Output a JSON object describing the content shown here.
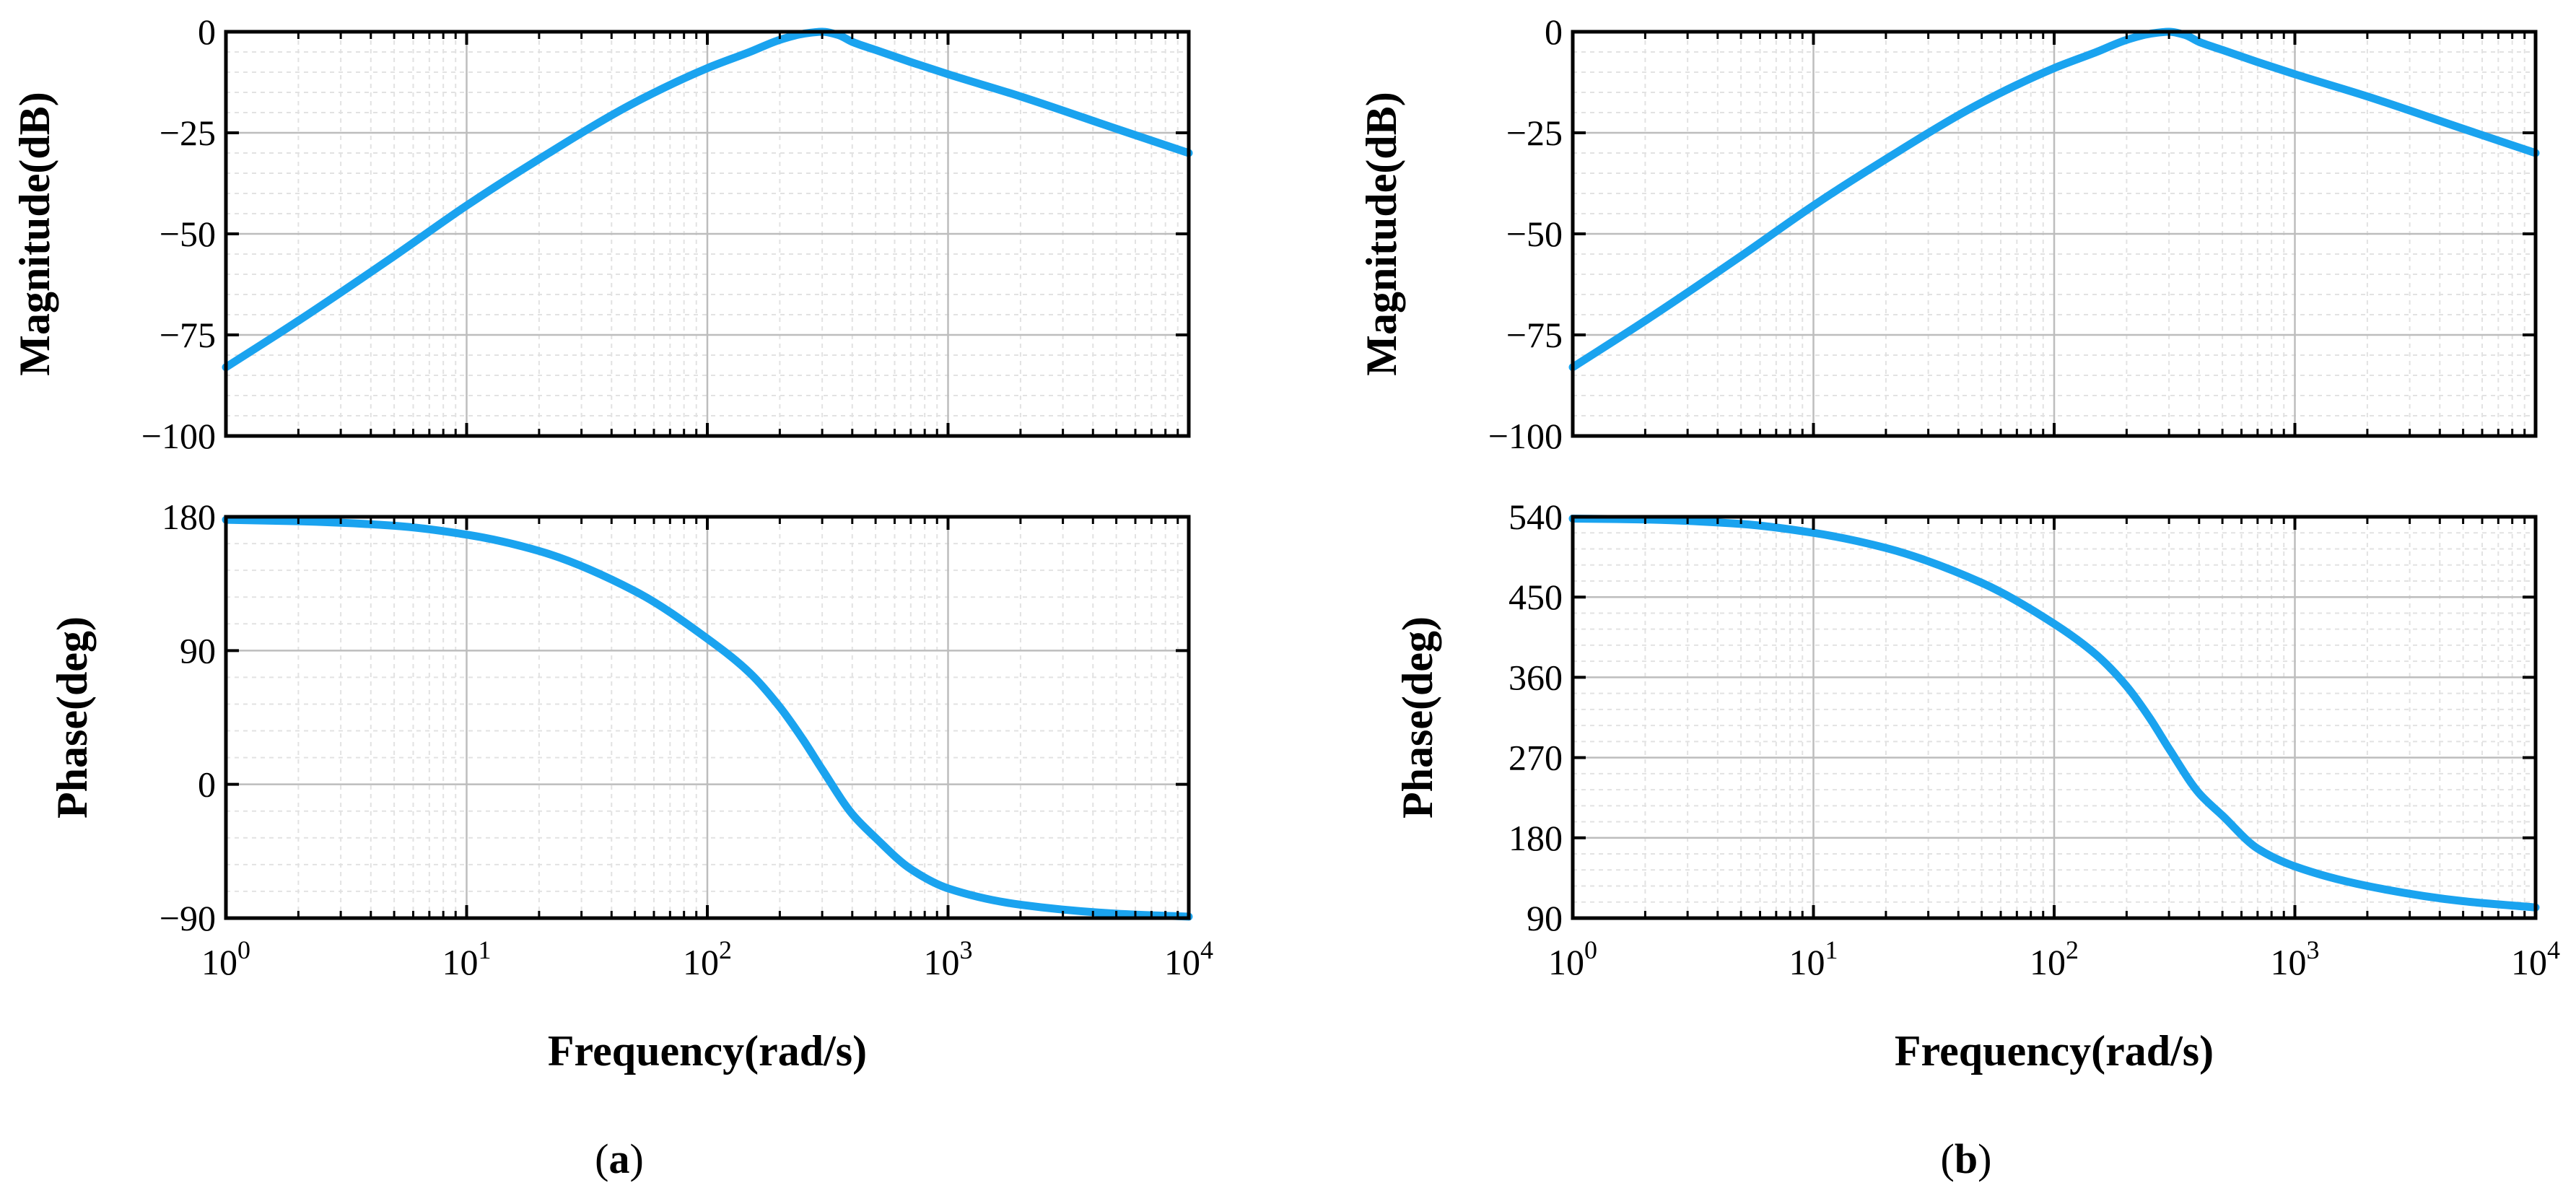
{
  "colors": {
    "line": "#1aa3ef",
    "major_grid": "#bdbdbd",
    "minor_grid": "#e2e2e2",
    "frame": "#000000"
  },
  "chart_data": [
    {
      "id": "a-magnitude",
      "type": "line",
      "panel": "a",
      "x_scale": "log",
      "xlim": [
        1,
        10000
      ],
      "ylim": [
        -100,
        0
      ],
      "yticks": [
        0,
        -25,
        -50,
        -75,
        -100
      ],
      "ytick_labels": [
        "0",
        "−25",
        "−50",
        "−75",
        "−100"
      ],
      "ylabel": "Magnitude(dB)",
      "grid": true,
      "series": [
        {
          "name": "magnitude",
          "x": [
            1,
            2,
            5,
            10,
            20,
            50,
            100,
            150,
            200,
            250,
            300,
            350,
            400,
            500,
            700,
            1000,
            2000,
            5000,
            10000
          ],
          "y": [
            -83,
            -71.5,
            -55.5,
            -43,
            -31.5,
            -17.5,
            -9,
            -5,
            -2,
            -0.5,
            0,
            -0.8,
            -2.5,
            -4.5,
            -7.5,
            -10.5,
            -16,
            -24,
            -30
          ]
        }
      ]
    },
    {
      "id": "a-phase",
      "type": "line",
      "panel": "a",
      "x_scale": "log",
      "xlim": [
        1,
        10000
      ],
      "ylim": [
        -90,
        180
      ],
      "yticks": [
        180,
        90,
        0,
        -90
      ],
      "ytick_labels": [
        "180",
        "90",
        "0",
        "−90"
      ],
      "xticks": [
        1,
        10,
        100,
        1000,
        10000
      ],
      "xtick_labels": [
        {
          "base": "10",
          "exp": "0"
        },
        {
          "base": "10",
          "exp": "1"
        },
        {
          "base": "10",
          "exp": "2"
        },
        {
          "base": "10",
          "exp": "3"
        },
        {
          "base": "10",
          "exp": "4"
        }
      ],
      "xlabel": "Frequency(rad/s)",
      "ylabel": "Phase(deg)",
      "grid": true,
      "series": [
        {
          "name": "phase",
          "x": [
            1,
            2,
            5,
            10,
            20,
            50,
            100,
            150,
            200,
            250,
            300,
            400,
            500,
            700,
            1000,
            2000,
            5000,
            10000
          ],
          "y": [
            178,
            177,
            174,
            168,
            157,
            130,
            98,
            75,
            52,
            30,
            10,
            -20,
            -36,
            -57,
            -70,
            -81,
            -87,
            -89
          ]
        }
      ]
    },
    {
      "id": "b-magnitude",
      "type": "line",
      "panel": "b",
      "x_scale": "log",
      "xlim": [
        1,
        10000
      ],
      "ylim": [
        -100,
        0
      ],
      "yticks": [
        0,
        -25,
        -50,
        -75,
        -100
      ],
      "ytick_labels": [
        "0",
        "−25",
        "−50",
        "−75",
        "−100"
      ],
      "ylabel": "Magnitude(dB)",
      "grid": true,
      "series": [
        {
          "name": "magnitude",
          "x": [
            1,
            2,
            5,
            10,
            20,
            50,
            100,
            150,
            200,
            250,
            300,
            350,
            400,
            500,
            700,
            1000,
            2000,
            5000,
            10000
          ],
          "y": [
            -83,
            -71.5,
            -55.5,
            -43,
            -31.5,
            -17.5,
            -9,
            -5,
            -2,
            -0.5,
            0,
            -0.8,
            -2.5,
            -4.5,
            -7.5,
            -10.5,
            -16,
            -24,
            -30
          ]
        }
      ]
    },
    {
      "id": "b-phase",
      "type": "line",
      "panel": "b",
      "x_scale": "log",
      "xlim": [
        1,
        10000
      ],
      "ylim": [
        90,
        540
      ],
      "yticks": [
        540,
        450,
        360,
        270,
        180,
        90
      ],
      "ytick_labels": [
        "540",
        "450",
        "360",
        "270",
        "180",
        "90"
      ],
      "xticks": [
        1,
        10,
        100,
        1000,
        10000
      ],
      "xtick_labels": [
        {
          "base": "10",
          "exp": "0"
        },
        {
          "base": "10",
          "exp": "1"
        },
        {
          "base": "10",
          "exp": "2"
        },
        {
          "base": "10",
          "exp": "3"
        },
        {
          "base": "10",
          "exp": "4"
        }
      ],
      "xlabel": "Frequency(rad/s)",
      "ylabel": "Phase(deg)",
      "grid": true,
      "series": [
        {
          "name": "phase",
          "x": [
            1,
            2,
            5,
            10,
            20,
            50,
            100,
            150,
            200,
            250,
            300,
            400,
            500,
            700,
            1000,
            2000,
            5000,
            10000
          ],
          "y": [
            538,
            537,
            532,
            522,
            505,
            466,
            420,
            385,
            350,
            314,
            280,
            230,
            205,
            168,
            148,
            126,
            109,
            102
          ]
        }
      ]
    }
  ],
  "captions": {
    "a": {
      "open": "(",
      "letter": "a",
      "close": ")"
    },
    "b": {
      "open": "(",
      "letter": "b",
      "close": ")"
    }
  }
}
